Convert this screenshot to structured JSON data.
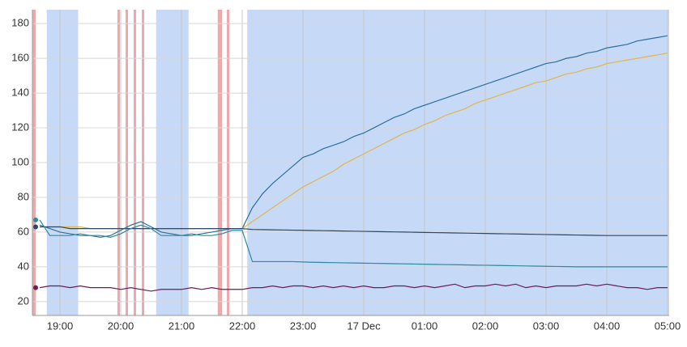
{
  "chart_data": {
    "type": "line",
    "categories": [
      null,
      null,
      "19:00",
      null,
      null,
      null,
      null,
      null,
      "20:00",
      null,
      null,
      null,
      null,
      null,
      "21:00",
      null,
      null,
      null,
      null,
      null,
      "22:00",
      null,
      null,
      null,
      null,
      null,
      "23:00",
      null,
      null,
      null,
      null,
      null,
      "17 Dec",
      null,
      null,
      null,
      null,
      null,
      "01:00",
      null,
      null,
      null,
      null,
      null,
      "02:00",
      null,
      null,
      null,
      null,
      null,
      "03:00",
      null,
      null,
      null,
      null,
      null,
      "04:00",
      null,
      null,
      null,
      null,
      null,
      "05:00"
    ],
    "series": [
      {
        "color": "#2e6f9e",
        "values": [
          64,
          62,
          60,
          59,
          58,
          58,
          57,
          58,
          61,
          64,
          66,
          63,
          60,
          59,
          58,
          58,
          59,
          60,
          61,
          62,
          62,
          74,
          82,
          88,
          93,
          98,
          103,
          105,
          108,
          110,
          112,
          115,
          117,
          120,
          123,
          126,
          128,
          131,
          133,
          135,
          137,
          139,
          141,
          143,
          145,
          147,
          149,
          151,
          153,
          155,
          157,
          158,
          160,
          161,
          163,
          164,
          166,
          167,
          168,
          170,
          171,
          172,
          173
        ]
      },
      {
        "color": "#e3b54a",
        "values": [
          63,
          63,
          63,
          63,
          63,
          62,
          62,
          62,
          62,
          62,
          62,
          62,
          62,
          62,
          62,
          62,
          62,
          62,
          62,
          62,
          62,
          66,
          70,
          74,
          78,
          82,
          86,
          89,
          92,
          95,
          99,
          102,
          105,
          108,
          111,
          114,
          117,
          119,
          122,
          124,
          127,
          129,
          131,
          134,
          136,
          138,
          140,
          142,
          144,
          146,
          147,
          149,
          151,
          152,
          154,
          155,
          157,
          158,
          159,
          160,
          161,
          162,
          163
        ]
      },
      {
        "color": "#2c4866",
        "values": [
          63,
          63,
          63,
          62,
          62,
          62,
          62,
          62,
          62,
          62,
          62,
          62,
          62,
          62,
          62,
          62,
          62,
          62,
          62,
          62,
          62,
          61.5,
          61.4,
          61.3,
          61.2,
          61.1,
          61,
          60.9,
          60.8,
          60.7,
          60.6,
          60.5,
          60.4,
          60.3,
          60.2,
          60.1,
          60,
          59.9,
          59.8,
          59.7,
          59.6,
          59.5,
          59.4,
          59.3,
          59.2,
          59.1,
          59,
          58.9,
          58.8,
          58.7,
          58.6,
          58.5,
          58.4,
          58.3,
          58.2,
          58.1,
          58,
          58,
          58,
          58,
          58,
          58,
          58
        ]
      },
      {
        "color": "#2a8c9c",
        "values": [
          67,
          58,
          58,
          58,
          59,
          58,
          58,
          57,
          59,
          62,
          64,
          62,
          58,
          58,
          58,
          59,
          58,
          58,
          59,
          61,
          61,
          43,
          43,
          43,
          43,
          43,
          42.8,
          42.6,
          42.5,
          42.4,
          42.3,
          42.2,
          42.1,
          42,
          41.9,
          41.8,
          41.7,
          41.6,
          41.5,
          41.4,
          41.3,
          41.2,
          41.1,
          41,
          40.9,
          40.8,
          40.7,
          40.6,
          40.5,
          40.4,
          40.3,
          40.2,
          40.1,
          40,
          40,
          40,
          40,
          40,
          40,
          40,
          40,
          40,
          40
        ]
      },
      {
        "color": "#6b1a5c",
        "values": [
          28,
          29,
          29,
          28,
          29,
          28,
          28,
          28,
          27,
          28,
          27,
          26,
          27,
          27,
          27,
          28,
          27,
          28,
          27,
          27,
          27,
          28,
          28,
          29,
          28,
          29,
          29,
          28,
          29,
          28,
          29,
          28,
          29,
          28,
          28,
          29,
          29,
          28,
          29,
          28,
          29,
          30,
          28,
          29,
          29,
          30,
          29,
          30,
          28,
          29,
          28,
          29,
          29,
          29,
          30,
          29,
          30,
          29,
          28,
          28,
          27,
          28,
          28
        ]
      }
    ],
    "ylim": [
      12,
      188
    ],
    "yticks": [
      20,
      40,
      60,
      80,
      100,
      120,
      140,
      160,
      180
    ],
    "grid": true,
    "blue_periods": [
      [
        "18:47",
        "19:18"
      ],
      [
        "20:35",
        "21:07"
      ],
      [
        "22:05",
        "05:02"
      ]
    ],
    "blue_color": "#c6d9f7",
    "red_marks": [
      "18:33",
      "18:35",
      "19:58",
      "20:06",
      "20:14",
      "20:22",
      "21:37",
      "21:39",
      "21:46"
    ],
    "red_color": "#f1a7ae"
  }
}
